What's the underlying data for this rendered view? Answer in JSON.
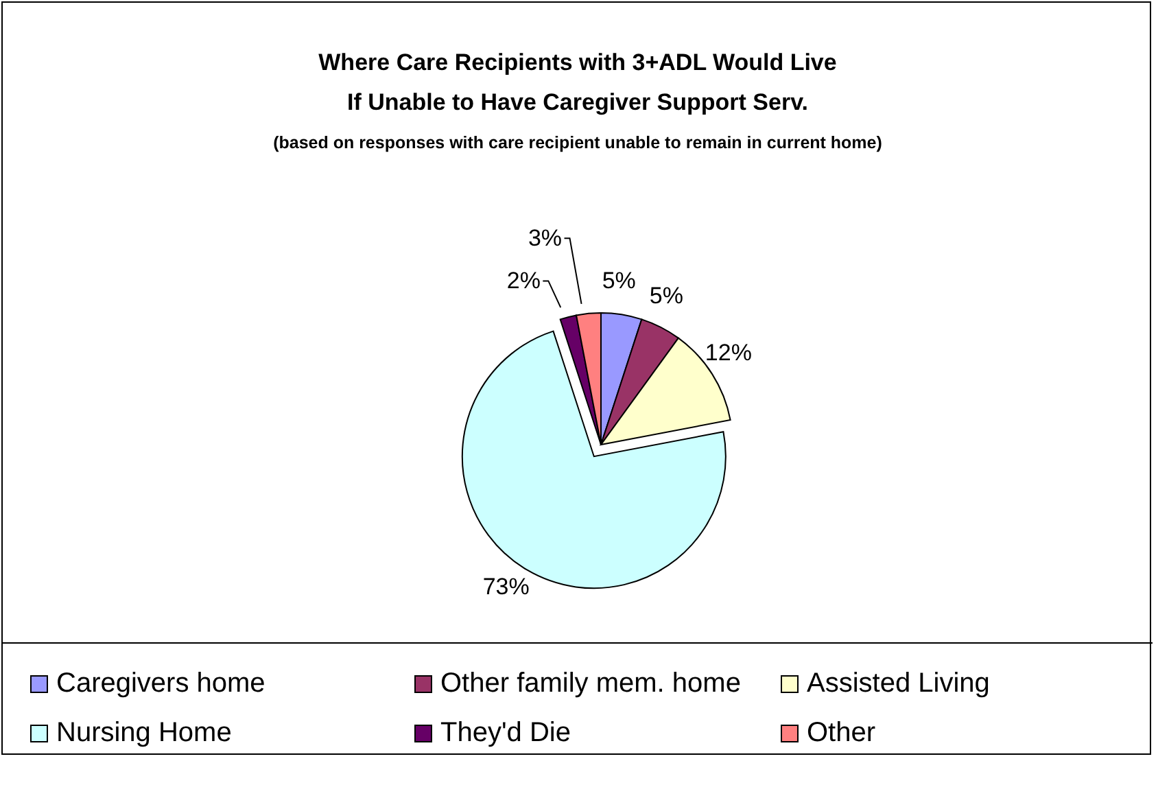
{
  "chart_data": {
    "type": "pie",
    "title": "Where Care Recipients with 3+ADL Would Live\nIf Unable to Have Caregiver Support Serv.",
    "subtitle": "(based on responses with care recipient unable to remain in current home)",
    "categories": [
      "Caregivers home",
      "Other family mem. home",
      "Assisted Living",
      "Nursing Home",
      "They'd Die",
      "Other"
    ],
    "values": [
      5,
      5,
      12,
      73,
      2,
      3
    ],
    "colors": [
      "#9999ff",
      "#993366",
      "#ffffcc",
      "#ccffff",
      "#660066",
      "#ff8080"
    ],
    "value_labels": [
      "5%",
      "5%",
      "12%",
      "73%",
      "2%",
      "3%"
    ],
    "legend": "bottom"
  }
}
